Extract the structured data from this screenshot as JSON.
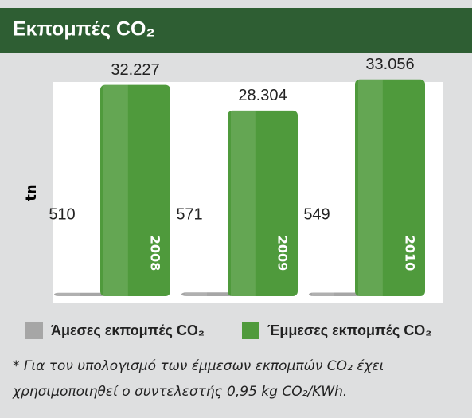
{
  "chart_data": {
    "type": "bar",
    "title": "Εκπομπές CO₂",
    "y_label": "tn",
    "categories": [
      "2008",
      "2009",
      "2010"
    ],
    "series": [
      {
        "name": "Άμεσες εκπομπές CO₂",
        "color": "#a6a6a6",
        "values": [
          510,
          571,
          549
        ],
        "value_labels": [
          "510",
          "571",
          "549"
        ]
      },
      {
        "name": "Έμμεσες εκπομπές CO₂",
        "color": "#4f9a3c",
        "values": [
          32227,
          28304,
          33056
        ],
        "value_labels": [
          "32.227",
          "28.304",
          "33.056"
        ]
      }
    ],
    "ylim": [
      0,
      34000
    ],
    "footnote": [
      "* Για τον υπολογισμό των έμμεσων εκπομπών CO₂ έχει",
      "χρησιμοποιηθεί ο συντελεστής 0,95 kg CO₂/KWh."
    ]
  }
}
